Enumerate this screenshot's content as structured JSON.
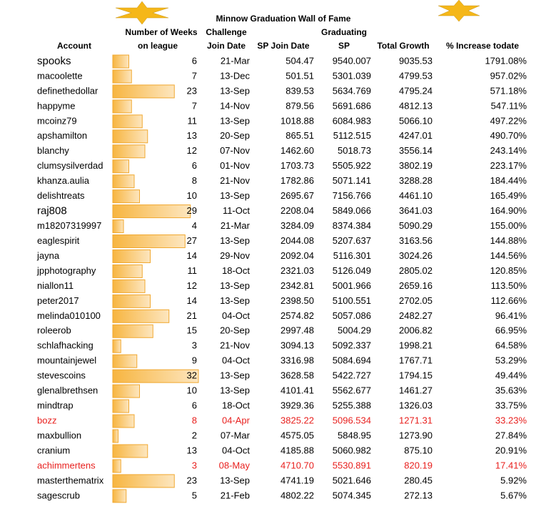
{
  "title": "Minnow Graduation Wall of Fame",
  "headers": [
    "Account",
    [
      "Number of Weeks",
      "on league"
    ],
    [
      "Challenge",
      "Join Date"
    ],
    "SP Join Date",
    [
      "Graduating",
      "SP"
    ],
    "Total Growth",
    "% Increase todate"
  ],
  "highlight_color": "#e8201e",
  "highlight_rows": [
    24,
    27
  ],
  "rows": [
    [
      "spooks",
      6,
      "21-Mar",
      "504.47",
      "9540.007",
      "9035.53",
      "1791.08%"
    ],
    [
      "macoolette",
      7,
      "13-Dec",
      "501.51",
      "5301.039",
      "4799.53",
      "957.02%"
    ],
    [
      "definethedollar",
      23,
      "13-Sep",
      "839.53",
      "5634.769",
      "4795.24",
      "571.18%"
    ],
    [
      "happyme",
      7,
      "14-Nov",
      "879.56",
      "5691.686",
      "4812.13",
      "547.11%"
    ],
    [
      "mcoinz79",
      11,
      "13-Sep",
      "1018.88",
      "6084.983",
      "5066.10",
      "497.22%"
    ],
    [
      "apshamilton",
      13,
      "20-Sep",
      "865.51",
      "5112.515",
      "4247.01",
      "490.70%"
    ],
    [
      "blanchy",
      12,
      "07-Nov",
      "1462.60",
      "5018.73",
      "3556.14",
      "243.14%"
    ],
    [
      "clumsysilverdad",
      6,
      "01-Nov",
      "1703.73",
      "5505.922",
      "3802.19",
      "223.17%"
    ],
    [
      "khanza.aulia",
      8,
      "21-Nov",
      "1782.86",
      "5071.141",
      "3288.28",
      "184.44%"
    ],
    [
      "delishtreats",
      10,
      "13-Sep",
      "2695.67",
      "7156.766",
      "4461.10",
      "165.49%"
    ],
    [
      "raj808",
      29,
      "11-Oct",
      "2208.04",
      "5849.066",
      "3641.03",
      "164.90%"
    ],
    [
      "m18207319997",
      4,
      "21-Mar",
      "3284.09",
      "8374.384",
      "5090.29",
      "155.00%"
    ],
    [
      "eaglespirit",
      27,
      "13-Sep",
      "2044.08",
      "5207.637",
      "3163.56",
      "144.88%"
    ],
    [
      "jayna",
      14,
      "29-Nov",
      "2092.04",
      "5116.301",
      "3024.26",
      "144.56%"
    ],
    [
      "jpphotography",
      11,
      "18-Oct",
      "2321.03",
      "5126.049",
      "2805.02",
      "120.85%"
    ],
    [
      "niallon11",
      12,
      "13-Sep",
      "2342.81",
      "5001.966",
      "2659.16",
      "113.50%"
    ],
    [
      "peter2017",
      14,
      "13-Sep",
      "2398.50",
      "5100.551",
      "2702.05",
      "112.66%"
    ],
    [
      "melinda010100",
      21,
      "04-Oct",
      "2574.82",
      "5057.086",
      "2482.27",
      "96.41%"
    ],
    [
      "roleerob",
      15,
      "20-Sep",
      "2997.48",
      "5004.29",
      "2006.82",
      "66.95%"
    ],
    [
      "schlafhacking",
      3,
      "21-Nov",
      "3094.13",
      "5092.337",
      "1998.21",
      "64.58%"
    ],
    [
      "mountainjewel",
      9,
      "04-Oct",
      "3316.98",
      "5084.694",
      "1767.71",
      "53.29%"
    ],
    [
      "stevescoins",
      32,
      "13-Sep",
      "3628.58",
      "5422.727",
      "1794.15",
      "49.44%"
    ],
    [
      "glenalbrethsen",
      10,
      "13-Sep",
      "4101.41",
      "5562.677",
      "1461.27",
      "35.63%"
    ],
    [
      "mindtrap",
      6,
      "18-Oct",
      "3929.36",
      "5255.388",
      "1326.03",
      "33.75%"
    ],
    [
      "bozz",
      8,
      "04-Apr",
      "3825.22",
      "5096.534",
      "1271.31",
      "33.23%"
    ],
    [
      "maxbullion",
      2,
      "07-Mar",
      "4575.05",
      "5848.95",
      "1273.90",
      "27.84%"
    ],
    [
      "cranium",
      13,
      "04-Oct",
      "4185.88",
      "5060.982",
      "875.10",
      "20.91%"
    ],
    [
      "achimmertens",
      3,
      "08-May",
      "4710.70",
      "5530.891",
      "820.19",
      "17.41%"
    ],
    [
      "masterthematrix",
      23,
      "13-Sep",
      "4741.19",
      "5021.646",
      "280.45",
      "5.92%"
    ],
    [
      "sagescrub",
      5,
      "21-Feb",
      "4802.22",
      "5074.345",
      "272.13",
      "5.67%"
    ]
  ]
}
